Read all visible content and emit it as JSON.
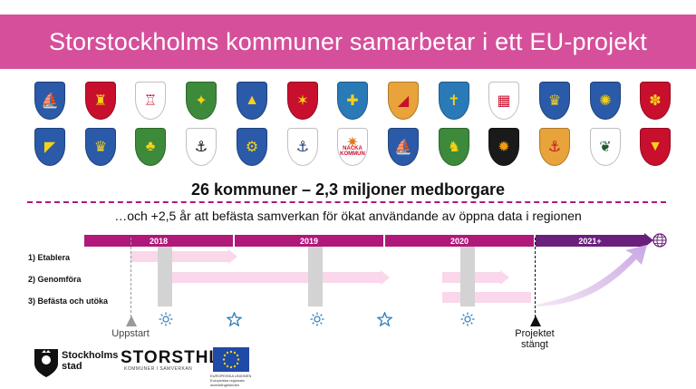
{
  "title": "Storstockholms kommuner samarbetar i ett EU-projekt",
  "crests": {
    "row1": [
      {
        "icon": "ship-crest-icon",
        "color": "#2a5aa8"
      },
      {
        "icon": "tower-crest-icon",
        "color": "#c8102e"
      },
      {
        "icon": "castle-crest-icon",
        "color": "#ffffff"
      },
      {
        "icon": "eagle-crest-icon",
        "color": "#3c8a3a"
      },
      {
        "icon": "mountain-crest-icon",
        "color": "#2a5aa8"
      },
      {
        "icon": "bird-crest-icon",
        "color": "#c8102e"
      },
      {
        "icon": "cross-crest-icon",
        "color": "#2a7ab8"
      },
      {
        "icon": "bend-crest-icon",
        "color": "#e8a33a"
      },
      {
        "icon": "saint-crest-icon",
        "color": "#2a7ab8"
      },
      {
        "icon": "bridge-crest-icon",
        "color": "#ffffff"
      },
      {
        "icon": "crown-crest-icon",
        "color": "#2a5aa8"
      },
      {
        "icon": "sun-crest-icon",
        "color": "#2a5aa8"
      },
      {
        "icon": "figure-crest-icon",
        "color": "#c8102e"
      }
    ],
    "row2": [
      {
        "icon": "diagonal-crest-icon",
        "color": "#2a5aa8"
      },
      {
        "icon": "crowns-crest-icon",
        "color": "#2a5aa8"
      },
      {
        "icon": "trees-crest-icon",
        "color": "#3c8a3a"
      },
      {
        "icon": "anchor-gate-crest-icon",
        "color": "#ffffff"
      },
      {
        "icon": "wheel-crest-icon",
        "color": "#2a5aa8"
      },
      {
        "icon": "anchor-crest-icon",
        "color": "#ffffff"
      },
      {
        "icon": "nacka-crest-icon",
        "color": "#ffffff",
        "text": "NACKA KOMMUN"
      },
      {
        "icon": "longship-crest-icon",
        "color": "#2a5aa8"
      },
      {
        "icon": "deer-crest-icon",
        "color": "#3c8a3a"
      },
      {
        "icon": "flames-crest-icon",
        "color": "#1a1a1a"
      },
      {
        "icon": "rooster-anchor-crest-icon",
        "color": "#e8a33a"
      },
      {
        "icon": "leaf-crest-icon",
        "color": "#ffffff"
      },
      {
        "icon": "chevron-crest-icon",
        "color": "#c8102e"
      }
    ]
  },
  "headline": "26 kommuner – 2,3 miljoner medborgare",
  "subline": "…och +2,5 år att befästa samverkan för ökat användande av öppna data i regionen",
  "timeline": {
    "years": [
      "2018",
      "2019",
      "2020",
      "2021+"
    ],
    "phases": [
      "1) Etablera",
      "2) Genomföra",
      "3) Befästa och utöka"
    ],
    "start_label": "Uppstart",
    "end_label": "Projektet stängt",
    "colors": {
      "bar": "#b0187a",
      "bar_last": "#6b1f7d",
      "pink": "#fad7ea",
      "gray": "#d3d3d3"
    }
  },
  "logos": {
    "city": "Stockholms stad",
    "brand": "STORSTHLM",
    "brand_sub": "KOMMUNER I SAMVERKAN",
    "eu": "EUROPEISKA UNIONEN Europeiska regionala utvecklingsfonden"
  }
}
